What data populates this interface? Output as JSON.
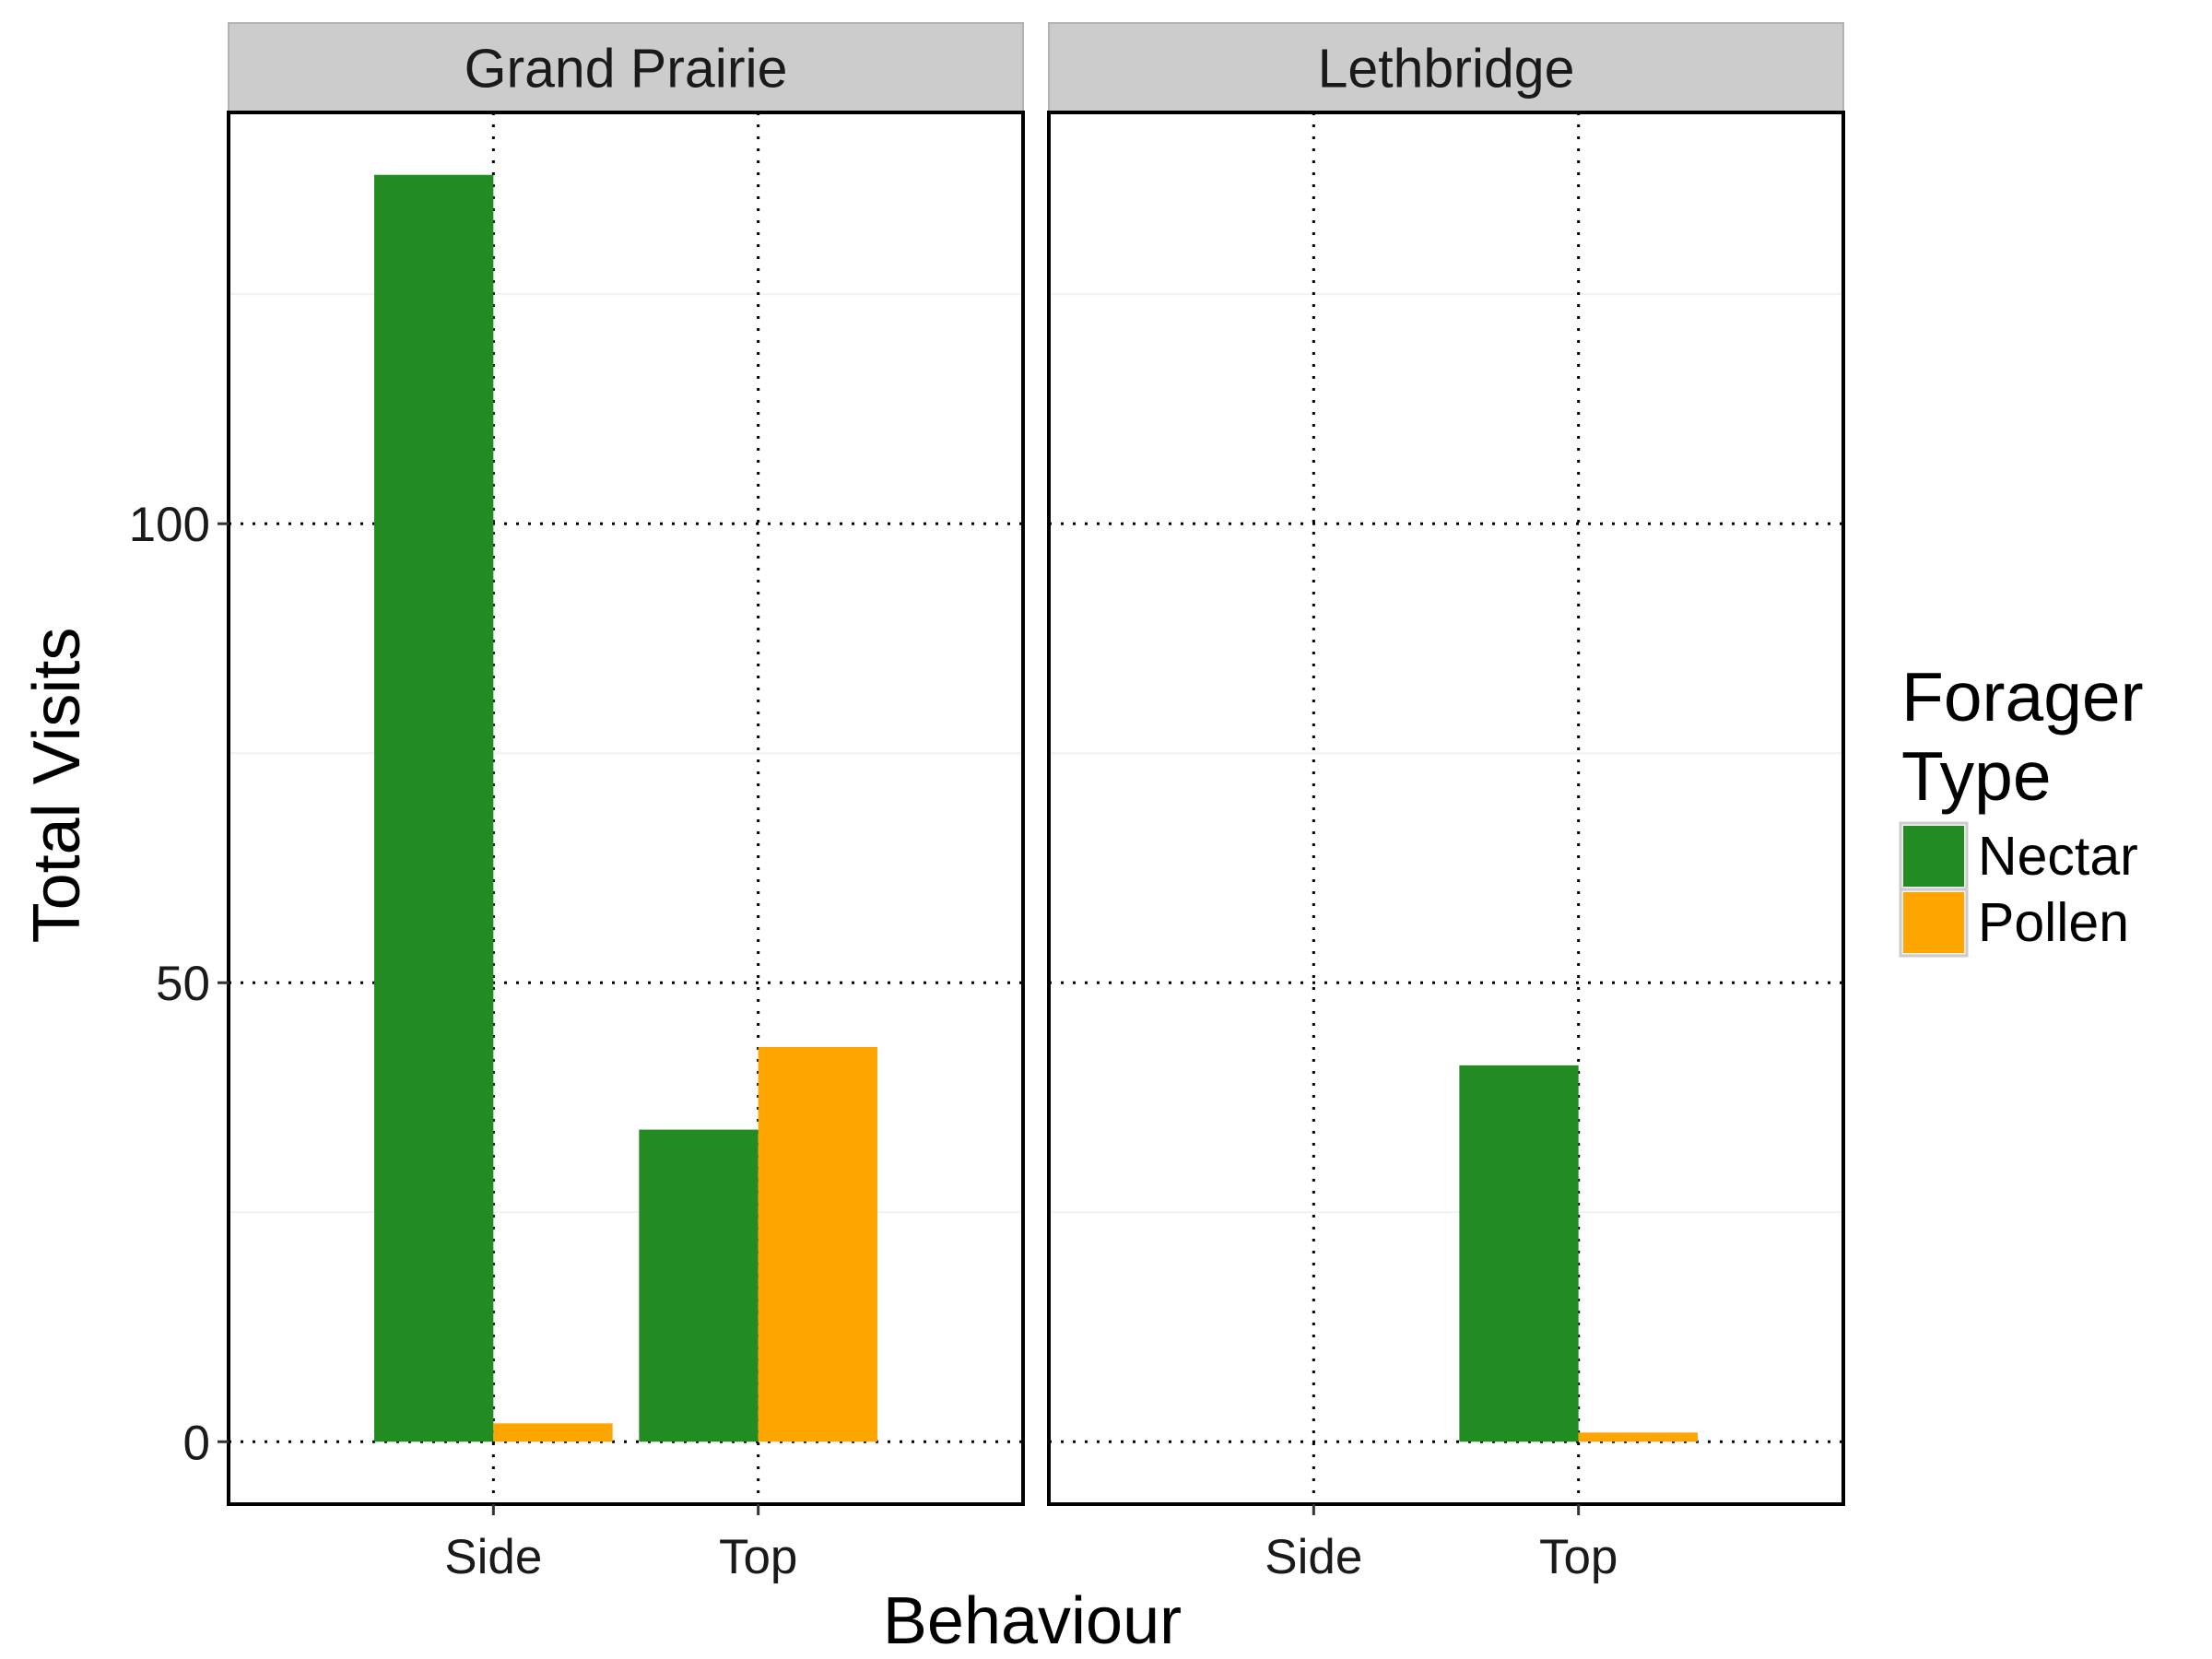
{
  "chart_data": {
    "type": "bar",
    "facets": [
      "Grand Prairie",
      "Lethbridge"
    ],
    "categories": [
      "Side",
      "Top"
    ],
    "series": [
      {
        "name": "Nectar",
        "color": "#228B22"
      },
      {
        "name": "Pollen",
        "color": "#FFA500"
      }
    ],
    "values": {
      "Grand Prairie": {
        "Nectar": [
          138,
          34
        ],
        "Pollen": [
          2,
          43
        ]
      },
      "Lethbridge": {
        "Nectar": [
          0,
          41
        ],
        "Pollen": [
          0,
          1
        ]
      }
    },
    "xlabel": "Behaviour",
    "ylabel": "Total Visits",
    "yticks": [
      0,
      50,
      100
    ],
    "ylim": [
      -6.8,
      144.8
    ],
    "legend_title": "Forager Type",
    "legend_title_lines": [
      "Forager",
      "Type"
    ],
    "legend_position": "right",
    "grid": "dotted major gridlines, faint minor gridlines"
  }
}
